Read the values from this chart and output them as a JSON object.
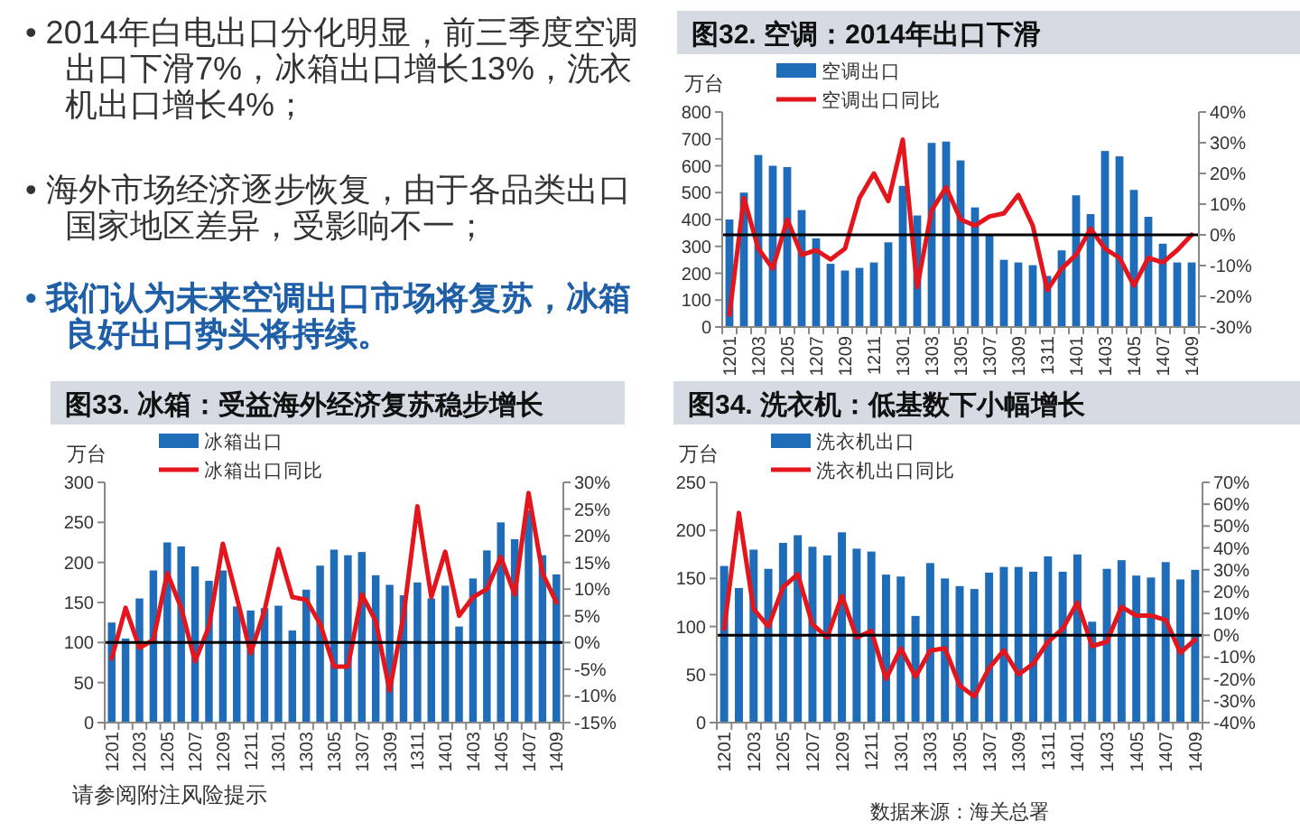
{
  "chart_data": [
    {
      "type": "other",
      "annotations": [
        "• 2014年白电出口分化明显，前三季度空调出口下滑7%，冰箱出口增长13%，洗衣机出口增长4%；",
        "• 海外市场经济逐步恢复，由于各品类出口国家地区差异，受影响不一；",
        "• 我们认为未来空调出口市场将复苏，冰箱良好出口势头将持续。",
        "请参阅附注风险提示"
      ]
    },
    {
      "type": "bar",
      "title": "图32. 空调：2014年出口下滑",
      "ylabel": "万台",
      "categories": [
        "1201",
        null,
        "1203",
        null,
        "1205",
        null,
        "1207",
        null,
        "1209",
        null,
        "1211",
        null,
        "1301",
        null,
        "1303",
        null,
        "1305",
        null,
        "1307",
        null,
        "1309",
        null,
        "1311",
        null,
        "1401",
        null,
        "1403",
        null,
        "1405",
        null,
        "1407",
        null,
        "1409"
      ],
      "series": [
        {
          "name": "空调出口",
          "type": "bar",
          "color": "#1f6cb8",
          "values": [
            400,
            500,
            640,
            600,
            595,
            435,
            330,
            235,
            210,
            220,
            240,
            315,
            525,
            415,
            685,
            690,
            620,
            445,
            345,
            250,
            240,
            230,
            190,
            285,
            490,
            420,
            655,
            635,
            510,
            410,
            310,
            240,
            240
          ]
        },
        {
          "name": "空调出口同比",
          "type": "line",
          "axis": "y2",
          "color": "#e3161d",
          "values": [
            -26,
            12,
            -4.5,
            -11,
            5,
            -6.5,
            -5,
            -8,
            -4.5,
            12,
            20,
            11,
            31,
            -17,
            8,
            15.5,
            5,
            3,
            6,
            7,
            13,
            3,
            -18,
            -11,
            -6.5,
            2,
            -4.5,
            -7.5,
            -16.5,
            -7.5,
            -9,
            -5,
            0
          ]
        }
      ],
      "ylim": [
        0,
        800
      ],
      "yticks": [
        0,
        100,
        200,
        300,
        400,
        500,
        600,
        700,
        800
      ],
      "y2lim": [
        -30,
        40
      ],
      "y2ticks": [
        {
          "value": -30,
          "label": "-30%"
        },
        {
          "value": -20,
          "label": "-20%"
        },
        {
          "value": -10,
          "label": "-10%"
        },
        {
          "value": 0,
          "label": "0%"
        },
        {
          "value": 10,
          "label": "10%"
        },
        {
          "value": 20,
          "label": "20%"
        },
        {
          "value": 30,
          "label": "30%"
        },
        {
          "value": 40,
          "label": "40%"
        }
      ],
      "ref_lines": [
        {
          "axis": "y2",
          "value": 0,
          "color": "#000000"
        }
      ],
      "legend": "top left"
    },
    {
      "type": "bar",
      "title": "图33. 冰箱：受益海外经济复苏稳步增长",
      "ylabel": "万台",
      "categories": [
        "1201",
        null,
        "1203",
        null,
        "1205",
        null,
        "1207",
        null,
        "1209",
        null,
        "1211",
        null,
        "1301",
        null,
        "1303",
        null,
        "1305",
        null,
        "1307",
        null,
        "1309",
        null,
        "1311",
        null,
        "1401",
        null,
        "1403",
        null,
        "1405",
        null,
        "1407",
        null,
        "1409"
      ],
      "series": [
        {
          "name": "冰箱出口",
          "type": "bar",
          "color": "#1f6cb8",
          "values": [
            125,
            105,
            155,
            190,
            225,
            220,
            195,
            177,
            190,
            145,
            140,
            143,
            146,
            115,
            166,
            196,
            216,
            209,
            213,
            184,
            172,
            159,
            175,
            155,
            171,
            120,
            180,
            215,
            250,
            229,
            265,
            209,
            185
          ]
        },
        {
          "name": "冰箱出口同比",
          "type": "line",
          "axis": "y2",
          "color": "#e3161d",
          "values": [
            -3,
            6.5,
            -1,
            0.5,
            13,
            6.5,
            -3.5,
            3,
            18.5,
            8.5,
            -2,
            6,
            17.5,
            8.5,
            8,
            3.5,
            -4.5,
            -4.5,
            9,
            4,
            -9,
            5,
            25.5,
            8.5,
            17,
            5,
            8.5,
            10,
            16,
            9,
            28,
            13,
            7.5
          ]
        }
      ],
      "ylim": [
        0,
        300
      ],
      "yticks": [
        0,
        50,
        100,
        150,
        200,
        250,
        300
      ],
      "y2lim": [
        -15,
        30
      ],
      "y2ticks": [
        {
          "value": -15,
          "label": "-15%"
        },
        {
          "value": -10,
          "label": "-10%"
        },
        {
          "value": -5,
          "label": "-5%"
        },
        {
          "value": 0,
          "label": "0%"
        },
        {
          "value": 5,
          "label": "5%"
        },
        {
          "value": 10,
          "label": "10%"
        },
        {
          "value": 15,
          "label": "15%"
        },
        {
          "value": 20,
          "label": "20%"
        },
        {
          "value": 25,
          "label": "25%"
        },
        {
          "value": 30,
          "label": "30%"
        }
      ],
      "ref_lines": [
        {
          "axis": "y2",
          "value": 0,
          "color": "#000000"
        }
      ],
      "legend": "top left"
    },
    {
      "type": "bar",
      "title": "图34. 洗衣机：低基数下小幅增长",
      "ylabel": "万台",
      "categories": [
        "1201",
        null,
        "1203",
        null,
        "1205",
        null,
        "1207",
        null,
        "1209",
        null,
        "1211",
        null,
        "1301",
        null,
        "1303",
        null,
        "1305",
        null,
        "1307",
        null,
        "1309",
        null,
        "1311",
        null,
        "1401",
        null,
        "1403",
        null,
        "1405",
        null,
        "1407",
        null,
        "1409"
      ],
      "series": [
        {
          "name": "洗衣机出口",
          "type": "bar",
          "color": "#1f6cb8",
          "values": [
            163,
            140,
            180,
            160,
            187,
            195,
            183,
            174,
            198,
            181,
            178,
            154,
            152,
            111,
            166,
            150,
            142,
            139,
            156,
            162,
            162,
            157,
            173,
            157,
            175,
            105,
            160,
            169,
            153,
            151,
            167,
            149,
            159
          ]
        },
        {
          "name": "洗衣机出口同比",
          "type": "line",
          "axis": "y2",
          "color": "#e3161d",
          "values": [
            3,
            56,
            12,
            4,
            22,
            28,
            5,
            -1,
            18,
            -1,
            2,
            -20,
            -6,
            -19,
            -7,
            -6,
            -23,
            -28,
            -15,
            -7,
            -18,
            -13,
            -3,
            3,
            15,
            -5,
            -3,
            13,
            9,
            9,
            7,
            -8,
            -2
          ]
        }
      ],
      "ylim": [
        0,
        250
      ],
      "yticks": [
        0,
        50,
        100,
        150,
        200,
        250
      ],
      "y2lim": [
        -40,
        70
      ],
      "y2ticks": [
        {
          "value": -40,
          "label": "-40%"
        },
        {
          "value": -30,
          "label": "-30%"
        },
        {
          "value": -20,
          "label": "-20%"
        },
        {
          "value": -10,
          "label": "-10%"
        },
        {
          "value": 0,
          "label": "0%"
        },
        {
          "value": 10,
          "label": "10%"
        },
        {
          "value": 20,
          "label": "20%"
        },
        {
          "value": 30,
          "label": "30%"
        },
        {
          "value": 40,
          "label": "40%"
        },
        {
          "value": 50,
          "label": "50%"
        },
        {
          "value": 60,
          "label": "60%"
        },
        {
          "value": 70,
          "label": "70%"
        }
      ],
      "ref_lines": [
        {
          "axis": "y2",
          "value": 0,
          "color": "#000000"
        }
      ],
      "legend": "top left",
      "annotations": [
        "数据来源：海关总署"
      ]
    }
  ]
}
